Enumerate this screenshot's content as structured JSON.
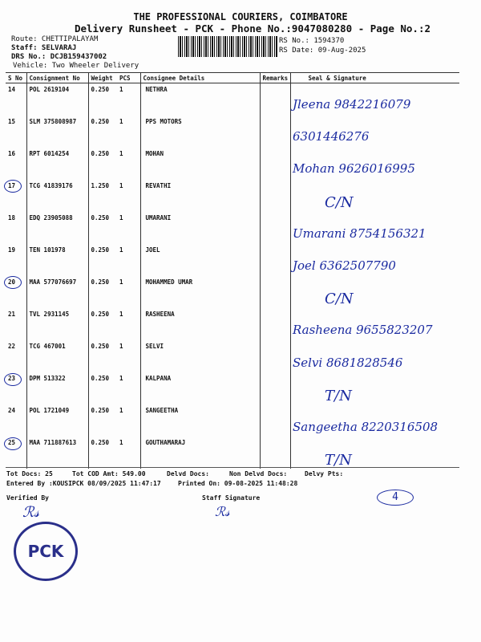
{
  "header": {
    "company": "THE PROFESSIONAL COURIERS, COIMBATORE",
    "title": "Delivery Runsheet - PCK - Phone No.:9047080280 - Page No.:2",
    "route": "Route: CHETTIPALAYAM",
    "staff": "Staff: SELVARAJ",
    "drs": "DRS No.: DCJB159437002",
    "vehicle": "Vehicle: Two Wheeler Delivery",
    "rs_no": "RS No.: 1594370",
    "rs_date": "RS Date: 09-Aug-2025"
  },
  "columns": [
    "S No",
    "Consignment No",
    "Weight",
    "PCS",
    "Consignee Details",
    "Remarks",
    "Seal & Signature"
  ],
  "rows": [
    {
      "sno": "14",
      "cn": "POL 2619104",
      "wt": "0.250",
      "pcs": "1",
      "name": "NETHRA",
      "hw": "Jleena 9842216079",
      "circled": false
    },
    {
      "sno": "15",
      "cn": "SLM 375808987",
      "wt": "0.250",
      "pcs": "1",
      "name": "PPS MOTORS",
      "hw": "6301446276",
      "circled": false
    },
    {
      "sno": "16",
      "cn": "RPT 6014254",
      "wt": "0.250",
      "pcs": "1",
      "name": "MOHAN",
      "hw": "Mohan 9626016995",
      "circled": false
    },
    {
      "sno": "17",
      "cn": "TCG 41839176",
      "wt": "1.250",
      "pcs": "1",
      "name": "REVATHI",
      "hw": "C/N",
      "circled": true
    },
    {
      "sno": "18",
      "cn": "EDQ 23905088",
      "wt": "0.250",
      "pcs": "1",
      "name": "UMARANI",
      "hw": "Umarani 8754156321",
      "circled": false
    },
    {
      "sno": "19",
      "cn": "TEN 101978",
      "wt": "0.250",
      "pcs": "1",
      "name": "JOEL",
      "hw": "Joel 6362507790",
      "circled": false
    },
    {
      "sno": "20",
      "cn": "MAA 577076697",
      "wt": "0.250",
      "pcs": "1",
      "name": "MOHAMMED UMAR",
      "hw": "C/N",
      "circled": true
    },
    {
      "sno": "21",
      "cn": "TVL 2931145",
      "wt": "0.250",
      "pcs": "1",
      "name": "RASHEENA",
      "hw": "Rasheena 9655823207",
      "circled": false
    },
    {
      "sno": "22",
      "cn": "TCG 467001",
      "wt": "0.250",
      "pcs": "1",
      "name": "SELVI",
      "hw": "Selvi 8681828546",
      "circled": false
    },
    {
      "sno": "23",
      "cn": "DPM 513322",
      "wt": "0.250",
      "pcs": "1",
      "name": "KALPANA",
      "hw": "T/N",
      "circled": true
    },
    {
      "sno": "24",
      "cn": "POL 1721049",
      "wt": "0.250",
      "pcs": "1",
      "name": "SANGEETHA",
      "hw": "Sangeetha 8220316508",
      "circled": false
    },
    {
      "sno": "25",
      "cn": "MAA 711887613",
      "wt": "0.250",
      "pcs": "1",
      "name": "GOUTHAMARAJ",
      "hw": "T/N",
      "circled": true
    }
  ],
  "footer": {
    "tot_docs": "Tot Docs:  25",
    "tot_cod": "Tot COD Amt:  549.00",
    "delvd": "Delvd Docs:",
    "non_delvd": "Non Delvd Docs:",
    "delvy_pts": "Delvy Pts:",
    "entered": "Entered By :KOUSIPCK 08/09/2025 11:47:17",
    "printed": "Printed On: 09-08-2025 11:48:28",
    "verified": "Verified By",
    "staff_sig": "Staff Signature",
    "page_mark": "4",
    "stamp": "PCK"
  },
  "colors": {
    "ink": "#1a2aa0",
    "stamp": "#2a2f8a"
  }
}
